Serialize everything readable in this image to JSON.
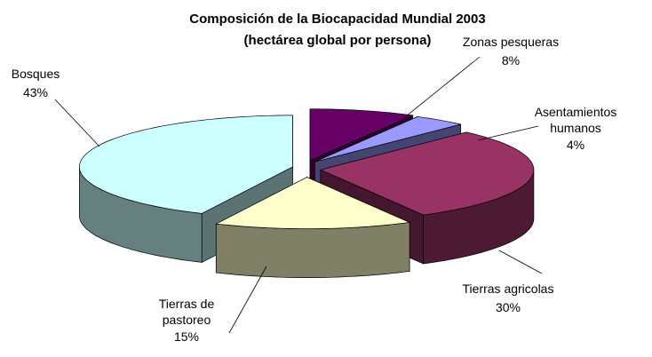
{
  "chart_data": {
    "type": "pie",
    "title": "Composición de la Biocapacidad Mundial 2003",
    "subtitle": "(hectárea global por persona)",
    "categories": [
      "Zonas pesqueras",
      "Asentamientos humanos",
      "Tierras agricolas",
      "Tierras de pastoreo",
      "Bosques"
    ],
    "values": [
      8,
      4,
      30,
      15,
      43
    ],
    "value_labels": [
      "8%",
      "4%",
      "30%",
      "15%",
      "43%"
    ],
    "colors": [
      "#660066",
      "#9999ff",
      "#993366",
      "#ffffcc",
      "#ccffff"
    ]
  }
}
